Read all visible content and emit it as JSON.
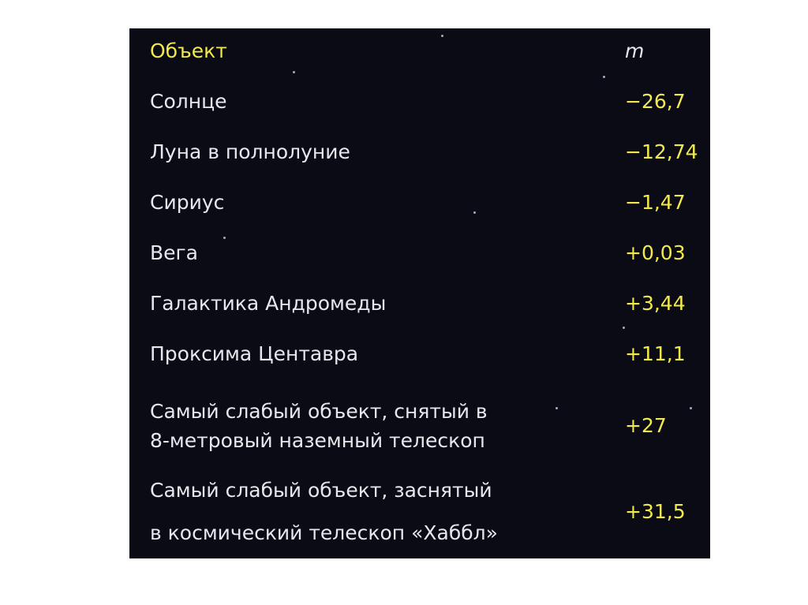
{
  "table": {
    "header": {
      "object": "Объект",
      "magnitude": "m"
    },
    "rows": [
      {
        "object": "Солнце",
        "magnitude": "−26,7"
      },
      {
        "object": "Луна в полнолуние",
        "magnitude": "−12,74"
      },
      {
        "object": "Сириус",
        "magnitude": "−1,47"
      },
      {
        "object": "Вега",
        "magnitude": "+0,03"
      },
      {
        "object": "Галактика Андромеды",
        "magnitude": "+3,44"
      },
      {
        "object": "Проксима Центавра",
        "magnitude": "+11,1"
      },
      {
        "object_line1": "Самый слабый объект, снятый в",
        "object_line2": "8-метровый наземный телескоп",
        "magnitude": "+27"
      },
      {
        "object_line1": "Самый слабый объект, заснятый",
        "object_line2": "в космический телескоп «Хаббл»",
        "magnitude": "+31,5"
      }
    ]
  },
  "colors": {
    "background": "#0a0b15",
    "accent": "#f2ea4c",
    "text": "#e8e8ec"
  }
}
